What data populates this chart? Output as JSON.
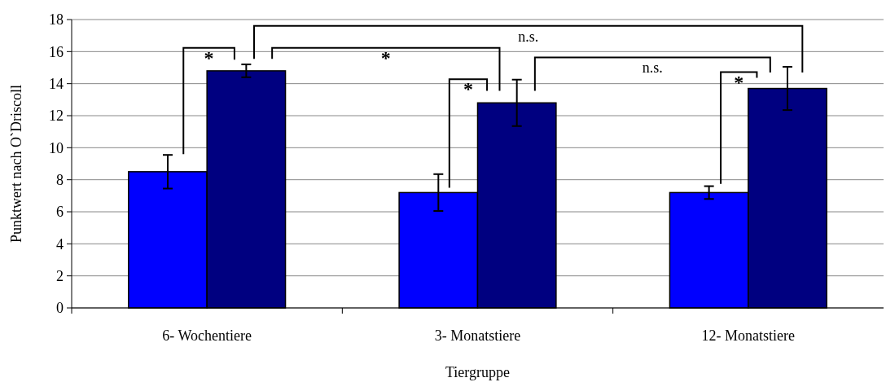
{
  "chart_data": {
    "type": "bar",
    "xlabel": "Tiergruppe",
    "ylabel": "Punktwert nach O`Driscoll",
    "categories": [
      "6- Wochentiere",
      "3- Monatstiere",
      "12- Monatstiere"
    ],
    "series": [
      {
        "color": "#0000ff",
        "values": [
          8.5,
          7.2,
          7.2
        ],
        "errors": [
          1.05,
          1.15,
          0.4
        ]
      },
      {
        "color": "#000080",
        "values": [
          14.8,
          12.8,
          13.7
        ],
        "errors": [
          0.4,
          1.45,
          1.35
        ]
      }
    ],
    "ylim": [
      0,
      18
    ],
    "yticks": [
      0,
      2,
      4,
      6,
      8,
      10,
      12,
      14,
      16,
      18
    ],
    "grid": "y",
    "annotations": [
      "*",
      "n.s.",
      "*",
      "*",
      "n.s.",
      "*"
    ]
  }
}
